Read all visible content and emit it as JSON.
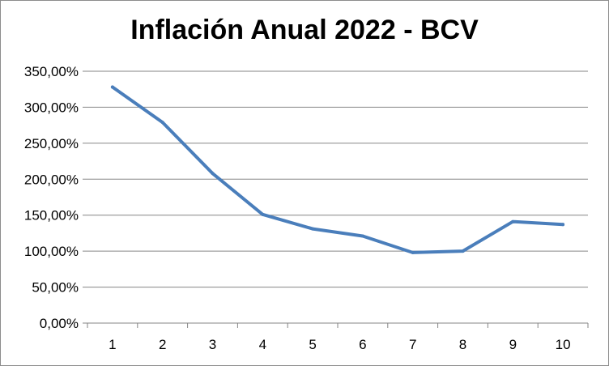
{
  "chart_data": {
    "type": "line",
    "title": "Inflación Anual 2022 - BCV",
    "xlabel": "",
    "ylabel": "",
    "x": [
      1,
      2,
      3,
      4,
      5,
      6,
      7,
      8,
      9,
      10
    ],
    "x_tick_labels": [
      "1",
      "2",
      "3",
      "4",
      "5",
      "6",
      "7",
      "8",
      "9",
      "10"
    ],
    "series": [
      {
        "values": [
          328,
          279,
          208,
          151,
          131,
          121,
          98,
          100,
          141,
          137
        ],
        "color": "#4a7ebb"
      }
    ],
    "ylim": [
      0,
      350
    ],
    "y_ticks": [
      0,
      50,
      100,
      150,
      200,
      250,
      300,
      350
    ],
    "y_tick_labels": [
      "0,00%",
      "50,00%",
      "100,00%",
      "150,00%",
      "200,00%",
      "250,00%",
      "300,00%",
      "350,00%"
    ],
    "grid": true,
    "legend": "none",
    "colors": {
      "gridline": "#868686",
      "axis": "#868686"
    }
  }
}
